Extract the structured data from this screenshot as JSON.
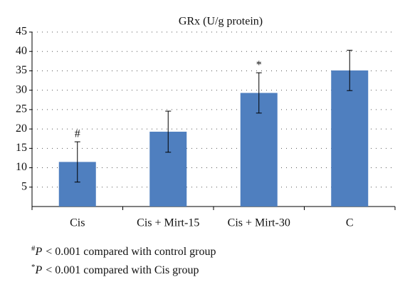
{
  "chart_data": {
    "type": "bar",
    "title": "GRx (U/g protein)",
    "categories": [
      "Cis",
      "Cis + Mirt-15",
      "Cis + Mirt-30",
      "C"
    ],
    "values": [
      11.5,
      19.3,
      29.3,
      35.1
    ],
    "errors": [
      5.2,
      5.3,
      5.2,
      5.2
    ],
    "markers": [
      "#",
      null,
      "*",
      null
    ],
    "color": "#4f7fbf",
    "ylim": [
      0,
      45
    ],
    "yticks": [
      5,
      10,
      15,
      20,
      25,
      30,
      35,
      40,
      45
    ],
    "grid": true,
    "footnotes": [
      {
        "symbol": "#",
        "italic": "P",
        "text": "< 0.001 compared with control group"
      },
      {
        "symbol": "*",
        "italic": "P",
        "text": "< 0.001 compared with Cis group"
      }
    ]
  }
}
